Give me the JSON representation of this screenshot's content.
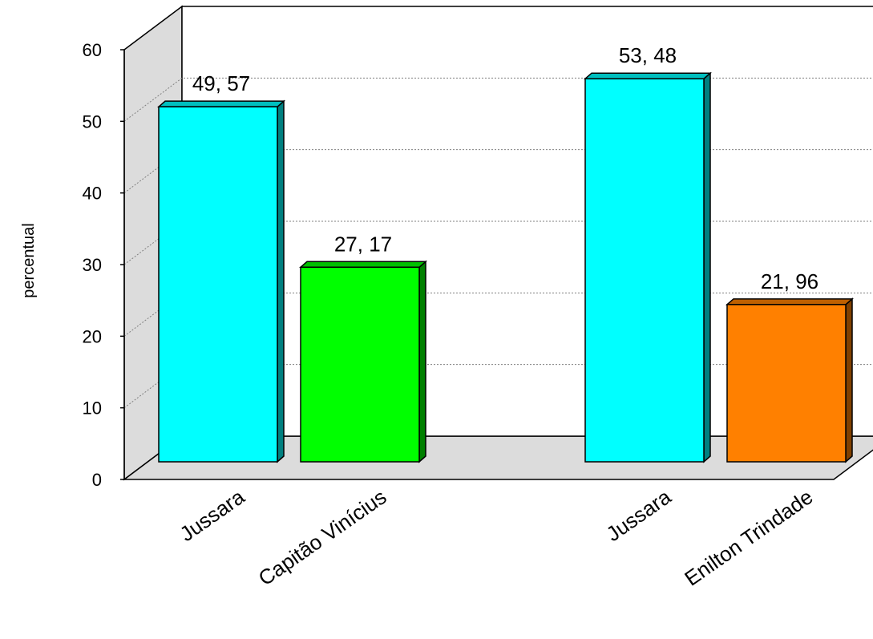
{
  "chart_data": {
    "type": "bar",
    "style": "3d",
    "categories": [
      "Jussara",
      "Capitão Vinícius",
      "Jussara",
      "Enilton Trindade"
    ],
    "groups": [
      [
        0,
        1
      ],
      [
        2,
        3
      ]
    ],
    "values": [
      49.57,
      27.17,
      53.48,
      21.96
    ],
    "value_labels": [
      "49, 57",
      "27, 17",
      "53, 48",
      "21, 96"
    ],
    "colors": [
      "#00ffff",
      "#00ff00",
      "#00ffff",
      "#ff8000"
    ],
    "ylabel": "percentual",
    "ylim": [
      0,
      60
    ],
    "yticks": [
      "0",
      "10",
      "20",
      "30",
      "40",
      "50",
      "60"
    ],
    "grid": true
  }
}
